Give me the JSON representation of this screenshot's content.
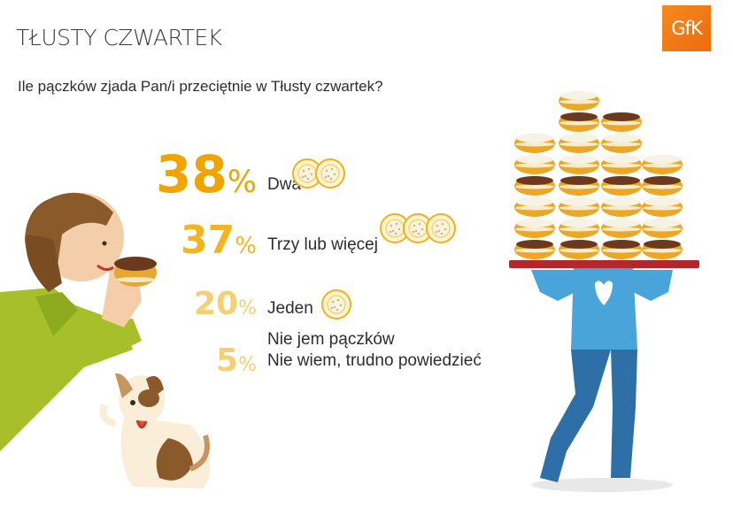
{
  "header": {
    "title": "TŁUSTY CZWARTEK",
    "logo_text": "GfK"
  },
  "question": "Ile pączków zjada Pan/i przeciętnie w Tłusty czwartek?",
  "colors": {
    "accent_strong": "#f0a400",
    "accent_mid": "#f4b51c",
    "accent_light": "#f5cf72",
    "logo": "#f07d16"
  },
  "chart_data": {
    "type": "table",
    "title": "",
    "categories": [
      "Dwa",
      "Trzy lub więcej",
      "Jeden",
      "Nie jem pączków",
      "Nie wiem, trudno powiedzieć"
    ],
    "rows": [
      {
        "value": 38,
        "value_label": "38",
        "unit": "%",
        "labels": [
          "Dwa"
        ],
        "donuts": 2
      },
      {
        "value": 37,
        "value_label": "37",
        "unit": "%",
        "labels": [
          "Trzy lub więcej"
        ],
        "donuts": 3
      },
      {
        "value": 20,
        "value_label": "20",
        "unit": "%",
        "labels": [
          "Jeden"
        ],
        "donuts": 1
      },
      {
        "value": 5,
        "value_label": "5",
        "unit": "%",
        "labels": [
          "Nie jem pączków",
          "Nie wiem, trudno powiedzieć"
        ],
        "donuts": 0
      }
    ]
  }
}
